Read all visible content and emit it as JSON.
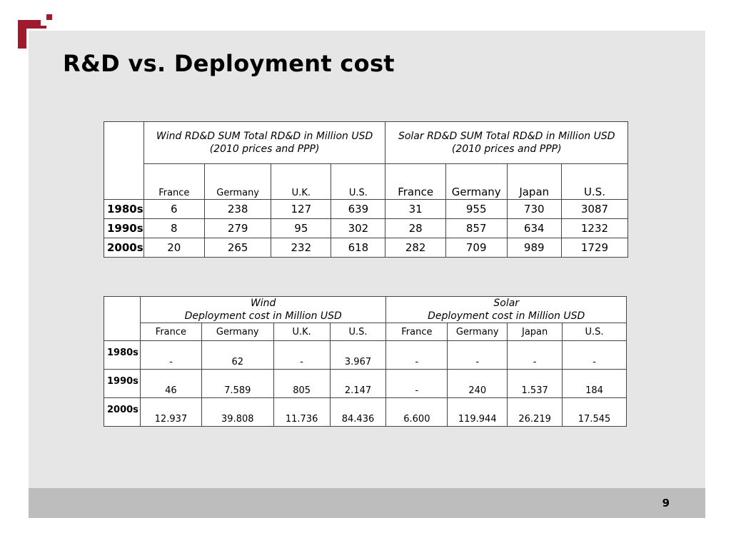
{
  "slide": {
    "title": "R&D vs. Deployment cost",
    "page_number": "9"
  },
  "colors": {
    "brand_red": "#a01a2e",
    "panel": "#e6e6e6",
    "footer": "#bdbdbd"
  },
  "rd_table": {
    "groups": [
      "Wind RD&D SUM Total RD&D in Million USD (2010 prices and PPP)",
      "Solar RD&D SUM Total RD&D in Million USD (2010 prices and PPP)"
    ],
    "columns": [
      "France",
      "Germany",
      "U.K.",
      "U.S.",
      "France",
      "Germany",
      "Japan",
      "U.S."
    ],
    "rows": [
      {
        "label": "1980s",
        "values": [
          "6",
          "238",
          "127",
          "639",
          "31",
          "955",
          "730",
          "3087"
        ]
      },
      {
        "label": "1990s",
        "values": [
          "8",
          "279",
          "95",
          "302",
          "28",
          "857",
          "634",
          "1232"
        ]
      },
      {
        "label": "2000s",
        "values": [
          "20",
          "265",
          "232",
          "618",
          "282",
          "709",
          "989",
          "1729"
        ]
      }
    ]
  },
  "deployment_table": {
    "groups": [
      {
        "line1": "Wind",
        "line2": "Deployment cost in Million USD"
      },
      {
        "line1": "Solar",
        "line2": "Deployment cost in Million USD"
      }
    ],
    "columns": [
      "France",
      "Germany",
      "U.K.",
      "U.S.",
      "France",
      "Germany",
      "Japan",
      "U.S."
    ],
    "rows": [
      {
        "label": "1980s",
        "values": [
          "-",
          "62",
          "-",
          "3.967",
          "-",
          "-",
          "-",
          "-"
        ]
      },
      {
        "label": "1990s",
        "values": [
          "46",
          "7.589",
          "805",
          "2.147",
          "-",
          "240",
          "1.537",
          "184"
        ]
      },
      {
        "label": "2000s",
        "values": [
          "12.937",
          "39.808",
          "11.736",
          "84.436",
          "6.600",
          "119.944",
          "26.219",
          "17.545"
        ]
      }
    ]
  }
}
